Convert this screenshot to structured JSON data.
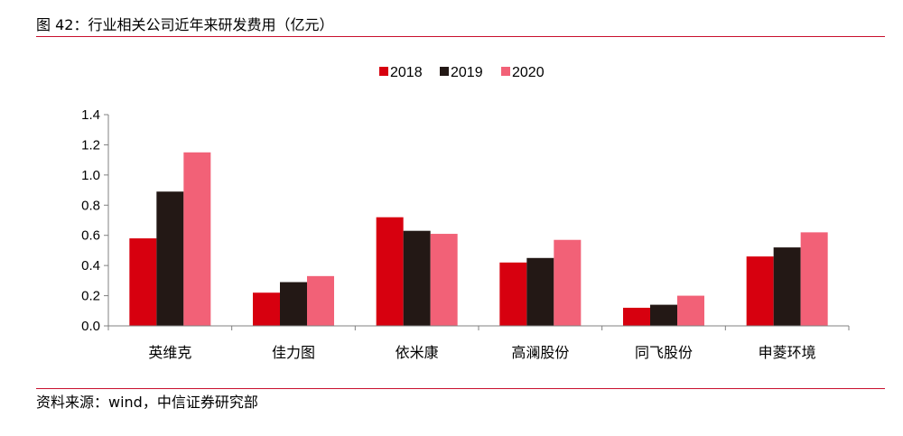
{
  "figure": {
    "title": "图 42：行业相关公司近年来研发费用（亿元）",
    "source": "资料来源：wind，中信证券研究部"
  },
  "chart_data": {
    "type": "bar",
    "categories": [
      "英维克",
      "佳力图",
      "依米康",
      "高澜股份",
      "同飞股份",
      "申菱环境"
    ],
    "series": [
      {
        "name": "2018",
        "color": "#d7000f",
        "values": [
          0.58,
          0.22,
          0.72,
          0.42,
          0.12,
          0.46
        ]
      },
      {
        "name": "2019",
        "color": "#231815",
        "values": [
          0.89,
          0.29,
          0.63,
          0.45,
          0.14,
          0.52
        ]
      },
      {
        "name": "2020",
        "color": "#f26177",
        "values": [
          1.15,
          0.33,
          0.61,
          0.57,
          0.2,
          0.62
        ]
      }
    ],
    "yticks": [
      "0.0",
      "0.2",
      "0.4",
      "0.6",
      "0.8",
      "1.0",
      "1.2",
      "1.4"
    ],
    "ylim": [
      0,
      1.4
    ],
    "grid": false,
    "legend_position": "top-center"
  }
}
